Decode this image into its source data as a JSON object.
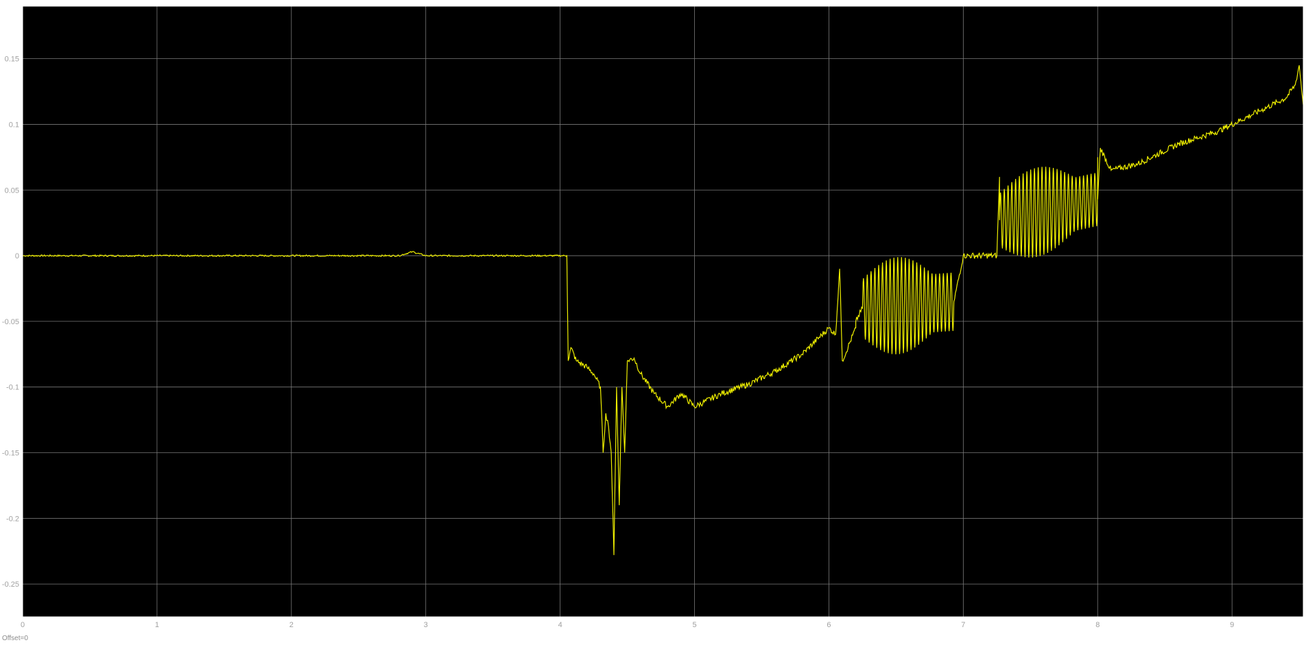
{
  "offset_label": "Offset=0",
  "colors": {
    "plot_background": "#000000",
    "grid": "#7a7a7a",
    "signal": "#f0f000",
    "tick_text": "#a0a0a0",
    "frame": "#ffffff"
  },
  "chart_data": {
    "type": "line",
    "title": "",
    "xlabel": "",
    "ylabel": "",
    "xlim": [
      0,
      9.53
    ],
    "ylim": [
      -0.275,
      0.19
    ],
    "grid": true,
    "x_ticks": [
      0,
      1,
      2,
      3,
      4,
      5,
      6,
      7,
      8,
      9
    ],
    "x_tick_labels": [
      "0",
      "1",
      "2",
      "3",
      "4",
      "5",
      "6",
      "7",
      "8",
      "9"
    ],
    "y_ticks": [
      0.15,
      0.1,
      0.05,
      0,
      -0.05,
      -0.1,
      -0.15,
      -0.2,
      -0.25
    ],
    "y_tick_labels": [
      "0.15",
      "0.1",
      "0.05",
      "0",
      "-0.05",
      "-0.1",
      "-0.15",
      "-0.2",
      "-0.25"
    ],
    "series": [
      {
        "color": "#f0f000",
        "x": [
          0,
          2.8,
          2.9,
          3.0,
          4.05,
          4.06,
          4.08,
          4.12,
          4.2,
          4.25,
          4.3,
          4.32,
          4.34,
          4.36,
          4.38,
          4.4,
          4.42,
          4.44,
          4.46,
          4.48,
          4.5,
          4.55,
          4.6,
          4.7,
          4.8,
          4.9,
          5.0,
          5.2,
          5.4,
          5.6,
          5.8,
          6.0,
          6.05,
          6.08,
          6.1,
          6.2,
          6.2,
          6.9,
          7.0,
          7.25,
          7.27,
          8.0,
          8.02,
          8.1,
          8.3,
          8.6,
          8.9,
          9.2,
          9.4,
          9.47,
          9.5,
          9.53
        ],
        "y": [
          0.0,
          0.0,
          0.003,
          0.0,
          0.0,
          -0.08,
          -0.07,
          -0.08,
          -0.085,
          -0.09,
          -0.1,
          -0.15,
          -0.12,
          -0.13,
          -0.15,
          -0.228,
          -0.1,
          -0.19,
          -0.1,
          -0.15,
          -0.08,
          -0.078,
          -0.09,
          -0.105,
          -0.115,
          -0.105,
          -0.115,
          -0.105,
          -0.098,
          -0.088,
          -0.075,
          -0.055,
          -0.06,
          -0.01,
          -0.08,
          -0.055,
          -0.05,
          -0.05,
          0.0,
          0.0,
          0.06,
          0.075,
          0.082,
          0.065,
          0.07,
          0.085,
          0.095,
          0.11,
          0.12,
          0.13,
          0.145,
          0.115
        ]
      }
    ],
    "oscillation_bursts": [
      {
        "x_start": 6.25,
        "x_end": 6.93,
        "center_start": -0.04,
        "center_end": -0.035,
        "amplitude": 0.037,
        "cycles": 24
      },
      {
        "x_start": 7.27,
        "x_end": 8.0,
        "center_start": 0.027,
        "center_end": 0.043,
        "amplitude": 0.034,
        "cycles": 26
      }
    ]
  }
}
